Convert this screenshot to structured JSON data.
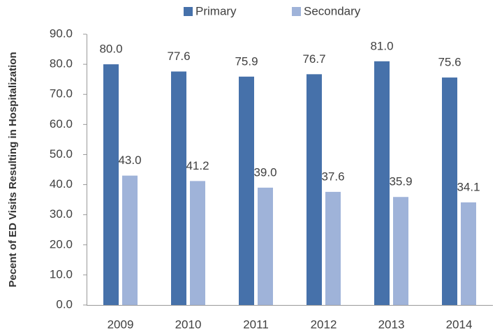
{
  "chart_data": {
    "type": "bar",
    "y_label": "Pecent of ED Visits Resulting in Hospitalization",
    "categories": [
      "2009",
      "2010",
      "2011",
      "2012",
      "2013",
      "2014"
    ],
    "series": [
      {
        "name": "Primary",
        "color": "#4671aa",
        "values": [
          80,
          77.6,
          75.9,
          76.7,
          81,
          75.6
        ],
        "value_labels": [
          "80.0",
          "77.6",
          "75.9",
          "76.7",
          "81.0",
          "75.6"
        ]
      },
      {
        "name": "Secondary",
        "color": "#9fb3d9",
        "values": [
          43,
          41.2,
          39,
          37.6,
          35.9,
          34.1
        ],
        "value_labels": [
          "43.0",
          "41.2",
          "39.0",
          "37.6",
          "35.9",
          "34.1"
        ]
      }
    ],
    "ylim": [
      0,
      90
    ],
    "yticks": [
      {
        "value": 0,
        "label": "0.0"
      },
      {
        "value": 10,
        "label": "10.0"
      },
      {
        "value": 20,
        "label": "20.0"
      },
      {
        "value": 30,
        "label": "30.0"
      },
      {
        "value": 40,
        "label": "40.0"
      },
      {
        "value": 50,
        "label": "50.0"
      },
      {
        "value": 60,
        "label": "60.0"
      },
      {
        "value": 70,
        "label": "70.0"
      },
      {
        "value": 80,
        "label": "80.0"
      },
      {
        "value": 90,
        "label": "90.0"
      }
    ],
    "legend": "top"
  }
}
